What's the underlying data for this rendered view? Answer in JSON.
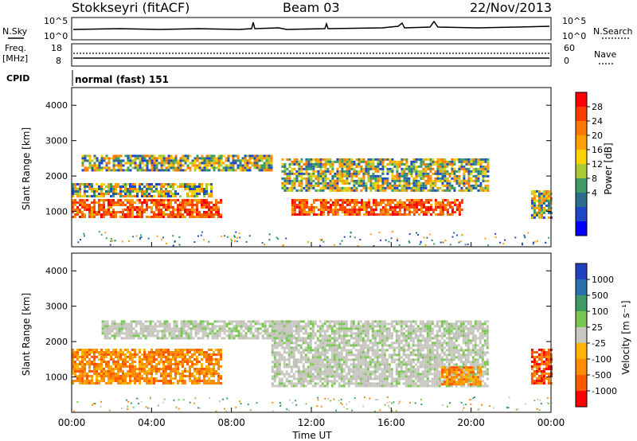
{
  "header": {
    "station": "Stokkseyri (fitACF)",
    "beam": "Beam 03",
    "date": "22/Nov/2013"
  },
  "top_panels": {
    "nsky_label": "N.Sky",
    "nsky_ticks": [
      "10^5",
      "10^0"
    ],
    "nsearch_label": "N.Search",
    "nsearch_ticks": [
      "10^5",
      "10^0"
    ],
    "freq_label": "Freq.",
    "freq_unit": "[MHz]",
    "freq_ticks": [
      "18",
      "8"
    ],
    "nave_label": "Nave",
    "nave_ticks": [
      "60",
      "0"
    ],
    "cpid_label": "CPID",
    "cpid_value": "normal (fast) 151"
  },
  "chart_data": [
    {
      "type": "heatmap",
      "name": "power",
      "ylabel": "Slant Range [km]",
      "ylim": [
        0,
        4500
      ],
      "yticks": [
        "4000",
        "3000",
        "2000",
        "1000"
      ],
      "xlim": [
        "00:00",
        "24:00"
      ],
      "colorbar_label": "Power [dB]",
      "colorbar_ticks": [
        "28",
        "24",
        "20",
        "16",
        "12",
        "8",
        "4"
      ],
      "colorbar_colors": [
        "#ff0000",
        "#ff3c00",
        "#ff7800",
        "#ffa000",
        "#ffd200",
        "#aacc33",
        "#3c9c64",
        "#2a6e8c",
        "#1e46c8",
        "#0000ff"
      ],
      "features": [
        {
          "start": 0.0,
          "end": 7.5,
          "range_low": 850,
          "range_high": 1350,
          "level": "high"
        },
        {
          "start": 0.0,
          "end": 7.0,
          "range_low": 1450,
          "range_high": 1800,
          "level": "medium"
        },
        {
          "start": 0.5,
          "end": 10.0,
          "range_low": 2150,
          "range_high": 2600,
          "level": "medium"
        },
        {
          "start": 11.0,
          "end": 19.5,
          "range_low": 900,
          "range_high": 1350,
          "level": "high"
        },
        {
          "start": 10.5,
          "end": 20.8,
          "range_low": 1600,
          "range_high": 2500,
          "level": "medium"
        },
        {
          "start": 23.0,
          "end": 24.0,
          "range_low": 850,
          "range_high": 1600,
          "level": "medium"
        }
      ]
    },
    {
      "type": "heatmap",
      "name": "velocity",
      "ylabel": "Slant Range [km]",
      "ylim": [
        0,
        4500
      ],
      "yticks": [
        "4000",
        "3000",
        "2000",
        "1000"
      ],
      "xlabel": "Time UT",
      "xticks": [
        "00:00",
        "04:00",
        "08:00",
        "12:00",
        "16:00",
        "20:00",
        "00:00"
      ],
      "colorbar_label": "Velocity [m s⁻¹]",
      "colorbar_ticks": [
        "1000",
        "500",
        "100",
        "25",
        "-25",
        "-100",
        "-500",
        "-1000"
      ],
      "colorbar_colors": [
        "#2040c0",
        "#2870b0",
        "#3c9c64",
        "#78c850",
        "#c8c8c0",
        "#ffb400",
        "#ff8c00",
        "#ff5a00",
        "#ff0000"
      ],
      "features": [
        {
          "start": 0.0,
          "end": 7.5,
          "range_low": 850,
          "range_high": 1800,
          "level": "negative"
        },
        {
          "start": 1.5,
          "end": 11.0,
          "range_low": 2100,
          "range_high": 2600,
          "level": "near-zero"
        },
        {
          "start": 10.0,
          "end": 20.8,
          "range_low": 750,
          "range_high": 2600,
          "level": "near-zero"
        },
        {
          "start": 18.5,
          "end": 20.5,
          "range_low": 800,
          "range_high": 1300,
          "level": "negative"
        },
        {
          "start": 23.0,
          "end": 24.0,
          "range_low": 850,
          "range_high": 1800,
          "level": "strongly-negative"
        }
      ]
    }
  ]
}
